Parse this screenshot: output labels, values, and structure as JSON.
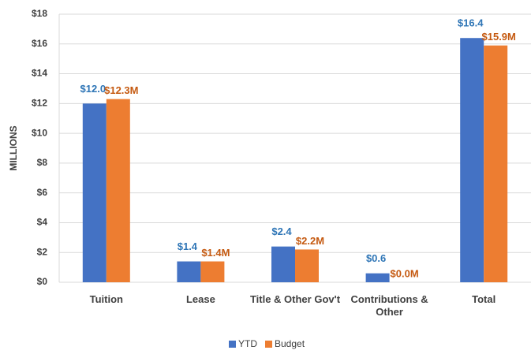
{
  "chart_data": {
    "type": "bar",
    "ylabel": "MILLIONS",
    "categories": [
      "Tuition",
      "Lease",
      "Title & Other Gov't",
      "Contributions & Other",
      "Total"
    ],
    "series": [
      {
        "name": "YTD",
        "color": "#4472c4",
        "values": [
          12.0,
          1.4,
          2.4,
          0.6,
          16.4
        ],
        "value_labels": [
          "$12.0",
          "$1.4",
          "$2.4",
          "$0.6",
          "$16.4"
        ],
        "label_color": "#2e75b6"
      },
      {
        "name": "Budget",
        "color": "#ed7d31",
        "values": [
          12.3,
          1.4,
          2.2,
          0.0,
          15.9
        ],
        "value_labels": [
          "$12.3M",
          "$1.4M",
          "$2.2M",
          "$0.0M",
          "$15.9M"
        ],
        "label_color": "#c55a11"
      }
    ],
    "ylim": [
      0,
      18
    ],
    "yticks": [
      {
        "value": 0,
        "label": "$0"
      },
      {
        "value": 2,
        "label": "$2"
      },
      {
        "value": 4,
        "label": "$4"
      },
      {
        "value": 6,
        "label": "$6"
      },
      {
        "value": 8,
        "label": "$8"
      },
      {
        "value": 10,
        "label": "$10"
      },
      {
        "value": 12,
        "label": "$12"
      },
      {
        "value": 14,
        "label": "$14"
      },
      {
        "value": 16,
        "label": "$16"
      },
      {
        "value": 18,
        "label": "$18"
      }
    ],
    "grid": true,
    "legend": "bottom"
  }
}
